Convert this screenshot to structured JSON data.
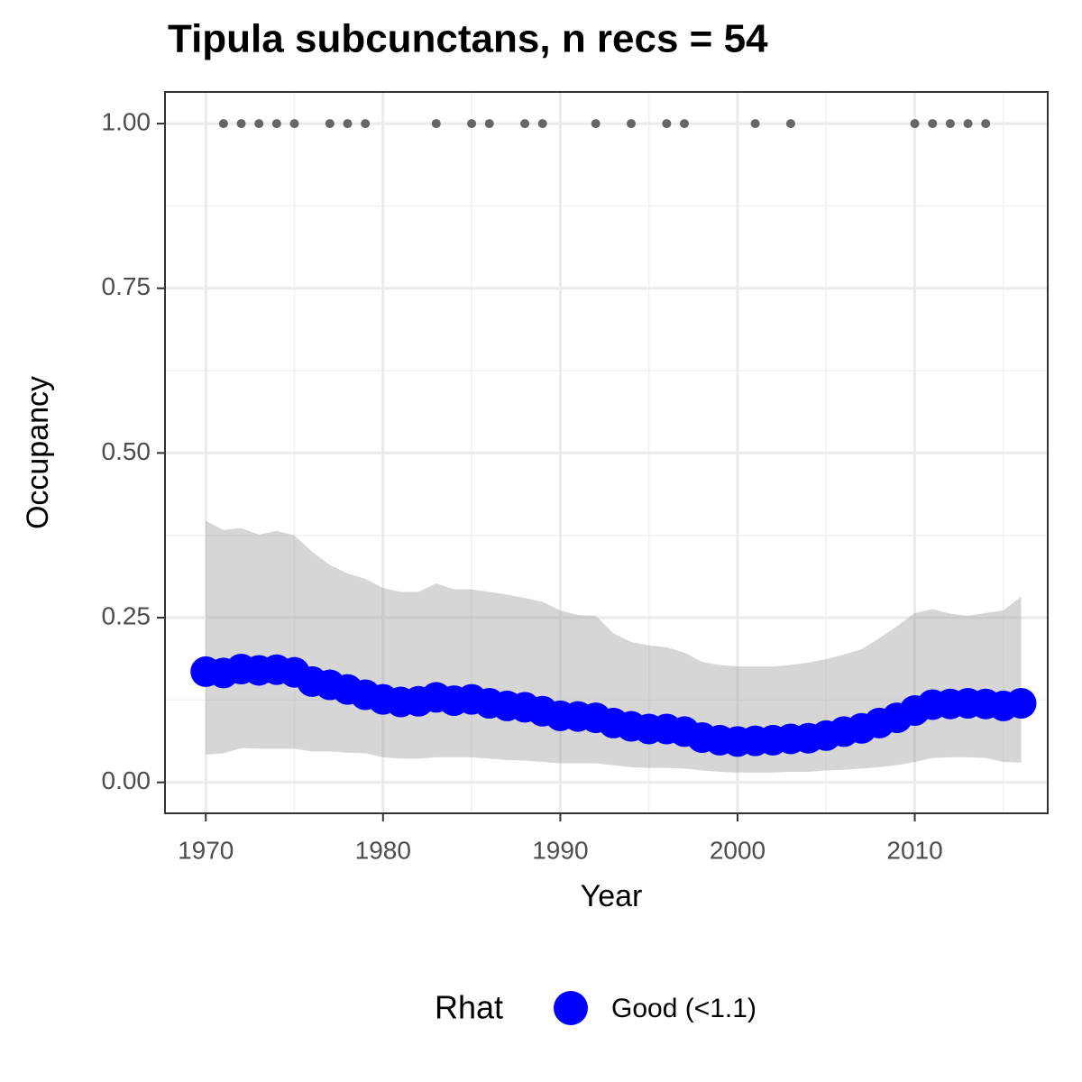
{
  "chart_data": {
    "type": "line",
    "title": "Tipula subcunctans, n recs = 54",
    "x_label": "Year",
    "y_label": "Occupancy",
    "x": [
      1970,
      1971,
      1972,
      1973,
      1974,
      1975,
      1976,
      1977,
      1978,
      1979,
      1980,
      1981,
      1982,
      1983,
      1984,
      1985,
      1986,
      1987,
      1988,
      1989,
      1990,
      1991,
      1992,
      1993,
      1994,
      1995,
      1996,
      1997,
      1998,
      1999,
      2000,
      2001,
      2002,
      2003,
      2004,
      2005,
      2006,
      2007,
      2008,
      2009,
      2010,
      2011,
      2012,
      2013,
      2014,
      2015,
      2016
    ],
    "series": [
      {
        "name": "Good (<1.1)",
        "color": "#0000ff",
        "values": [
          0.168,
          0.166,
          0.172,
          0.17,
          0.171,
          0.167,
          0.153,
          0.148,
          0.141,
          0.133,
          0.126,
          0.122,
          0.123,
          0.129,
          0.124,
          0.126,
          0.12,
          0.116,
          0.114,
          0.108,
          0.101,
          0.1,
          0.098,
          0.09,
          0.085,
          0.081,
          0.081,
          0.077,
          0.068,
          0.064,
          0.062,
          0.063,
          0.064,
          0.066,
          0.067,
          0.071,
          0.077,
          0.082,
          0.09,
          0.098,
          0.109,
          0.118,
          0.119,
          0.12,
          0.119,
          0.116,
          0.12
        ]
      }
    ],
    "band": {
      "color": "#999999",
      "alpha": 0.4,
      "upper": [
        0.397,
        0.383,
        0.386,
        0.376,
        0.382,
        0.375,
        0.35,
        0.33,
        0.317,
        0.309,
        0.295,
        0.289,
        0.289,
        0.302,
        0.293,
        0.293,
        0.289,
        0.285,
        0.28,
        0.274,
        0.261,
        0.254,
        0.253,
        0.226,
        0.213,
        0.208,
        0.205,
        0.197,
        0.183,
        0.178,
        0.176,
        0.176,
        0.176,
        0.178,
        0.182,
        0.187,
        0.194,
        0.202,
        0.219,
        0.237,
        0.257,
        0.263,
        0.256,
        0.253,
        0.257,
        0.261,
        0.282
      ],
      "lower": [
        0.042,
        0.044,
        0.052,
        0.051,
        0.051,
        0.051,
        0.047,
        0.047,
        0.045,
        0.044,
        0.038,
        0.036,
        0.036,
        0.038,
        0.038,
        0.038,
        0.036,
        0.034,
        0.033,
        0.031,
        0.029,
        0.029,
        0.029,
        0.026,
        0.023,
        0.022,
        0.022,
        0.021,
        0.018,
        0.016,
        0.015,
        0.015,
        0.015,
        0.016,
        0.016,
        0.018,
        0.019,
        0.021,
        0.023,
        0.026,
        0.031,
        0.037,
        0.038,
        0.038,
        0.037,
        0.031,
        0.03
      ]
    },
    "records": {
      "color": "#666666",
      "x": [
        1971,
        1972,
        1973,
        1974,
        1975,
        1977,
        1978,
        1979,
        1983,
        1985,
        1986,
        1988,
        1989,
        1992,
        1994,
        1996,
        1997,
        2001,
        2003,
        2010,
        2011,
        2012,
        2013,
        2014
      ],
      "values": [
        1,
        1,
        1,
        1,
        1,
        1,
        1,
        1,
        1,
        1,
        1,
        1,
        1,
        1,
        1,
        1,
        1,
        1,
        1,
        1,
        1,
        1,
        1,
        1
      ]
    },
    "xlim": [
      1967.7,
      2017.5
    ],
    "ylim": [
      -0.047,
      1.048
    ],
    "xticks": [
      1970,
      1980,
      1990,
      2000,
      2010
    ],
    "yticks": [
      {
        "value": 0,
        "label": "0.00"
      },
      {
        "value": 0.25,
        "label": "0.25"
      },
      {
        "value": 0.5,
        "label": "0.50"
      },
      {
        "value": 0.75,
        "label": "0.75"
      },
      {
        "value": 1,
        "label": "1.00"
      }
    ],
    "grid": true,
    "legend_title": "Rhat",
    "legend_position": "bottom"
  }
}
